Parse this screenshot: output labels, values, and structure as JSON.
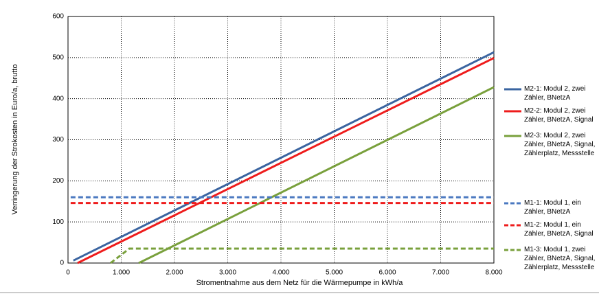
{
  "chart_data": {
    "type": "line",
    "y_label": "Verringerung der Strokosten in Euro/a, brutto",
    "x_label": "Stromentnahme aus dem Netz für die Wärmepumpe in kWh/a",
    "xlim": [
      0,
      8000
    ],
    "xticks": [
      0,
      {
        "value": 1000,
        "label": "1.000"
      },
      {
        "value": 2000,
        "label": "2.000"
      },
      {
        "value": 3000,
        "label": "3.000"
      },
      {
        "value": 4000,
        "label": "4.000"
      },
      {
        "value": 5000,
        "label": "5.000"
      },
      {
        "value": 6000,
        "label": "6.000"
      },
      {
        "value": 7000,
        "label": "7.000"
      },
      {
        "value": 8000,
        "label": "8.000"
      }
    ],
    "ylim": [
      0,
      600
    ],
    "yticks": [
      0,
      100,
      200,
      300,
      400,
      500,
      600
    ],
    "grid": true,
    "legend": "right",
    "series": [
      {
        "name": "M2-1: Modul 2, zwei Zähler, BNetzA",
        "color": "#3a64a0",
        "style": "solid",
        "x": [
          100,
          8000
        ],
        "values": [
          6,
          513
        ]
      },
      {
        "name": "M2-2: Modul 2, zwei Zähler, BNetzA, Signal",
        "color": "#ee1c1c",
        "style": "solid",
        "x": [
          180,
          8000
        ],
        "values": [
          0,
          499
        ]
      },
      {
        "name": "M2-3: Modul 2, zwei Zähler, BNetzA, Signal, Zählerplatz, Messstelle",
        "color": "#79a03c",
        "style": "solid",
        "x": [
          1330,
          8000
        ],
        "values": [
          0,
          428
        ]
      },
      {
        "name": "M1-1: Modul 1, ein Zähler, BNetzA",
        "color": "#4a78c0",
        "style": "dashed",
        "x": [
          50,
          8000
        ],
        "values": [
          160,
          160
        ]
      },
      {
        "name": "M1-2: Modul 1, ein Zähler, BNetzA, Signal",
        "color": "#ee1c1c",
        "style": "dashed",
        "x": [
          50,
          8000
        ],
        "values": [
          146,
          146
        ]
      },
      {
        "name": "M1-3: Modul 1, zwei Zähler, BNetzA, Signal, Zählerplatz, Messstelle",
        "color": "#79a03c",
        "style": "dashed",
        "x": [
          800,
          1150,
          8000
        ],
        "values": [
          0,
          35,
          35
        ]
      }
    ]
  }
}
